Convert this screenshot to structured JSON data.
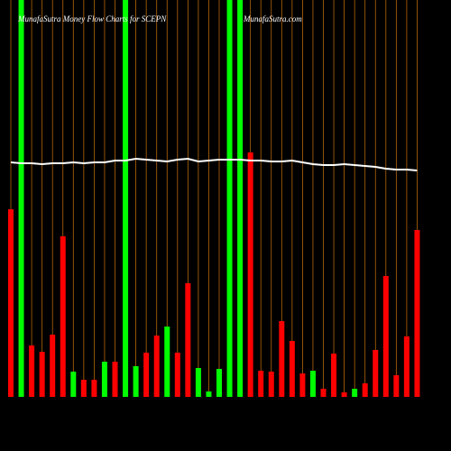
{
  "chart_data": {
    "type": "bar",
    "title": "MunafaSutra  Money Flow  Charts for SCEPN",
    "site": "MunafaSutra.com",
    "values": [
      208,
      440,
      57,
      50,
      69,
      178,
      28,
      19,
      19,
      39,
      39,
      440,
      34,
      49,
      68,
      78,
      49,
      126,
      32,
      6,
      31,
      440,
      440,
      271,
      29,
      28,
      84,
      62,
      26,
      29,
      9,
      48,
      5,
      9,
      15,
      52,
      134,
      24,
      67,
      185
    ],
    "colors": [
      "#ff0000",
      "#00ff00",
      "#ff0000",
      "#ff0000",
      "#ff0000",
      "#ff0000",
      "#00ff00",
      "#ff0000",
      "#ff0000",
      "#00ff00",
      "#ff0000",
      "#00ff00",
      "#00ff00",
      "#ff0000",
      "#ff0000",
      "#00ff00",
      "#ff0000",
      "#ff0000",
      "#00ff00",
      "#00ff00",
      "#00ff00",
      "#00ff00",
      "#00ff00",
      "#ff0000",
      "#ff0000",
      "#ff0000",
      "#ff0000",
      "#ff0000",
      "#ff0000",
      "#00ff00",
      "#ff0000",
      "#ff0000",
      "#ff0000",
      "#00ff00",
      "#ff0000",
      "#ff0000",
      "#ff0000",
      "#ff0000",
      "#ff0000",
      "#ff0000"
    ],
    "line_values": [
      260,
      259,
      259,
      258,
      259,
      259,
      260,
      259,
      260,
      260,
      262,
      262,
      264,
      263,
      262,
      261,
      263,
      264,
      261,
      262,
      263,
      263,
      263,
      262,
      262,
      261,
      261,
      262,
      260,
      258,
      257,
      257,
      258,
      257,
      256,
      255,
      253,
      252,
      252,
      251
    ],
    "line_color": "#ffffff",
    "grid_color": "#b8660b",
    "ylim": [
      0,
      440
    ]
  }
}
